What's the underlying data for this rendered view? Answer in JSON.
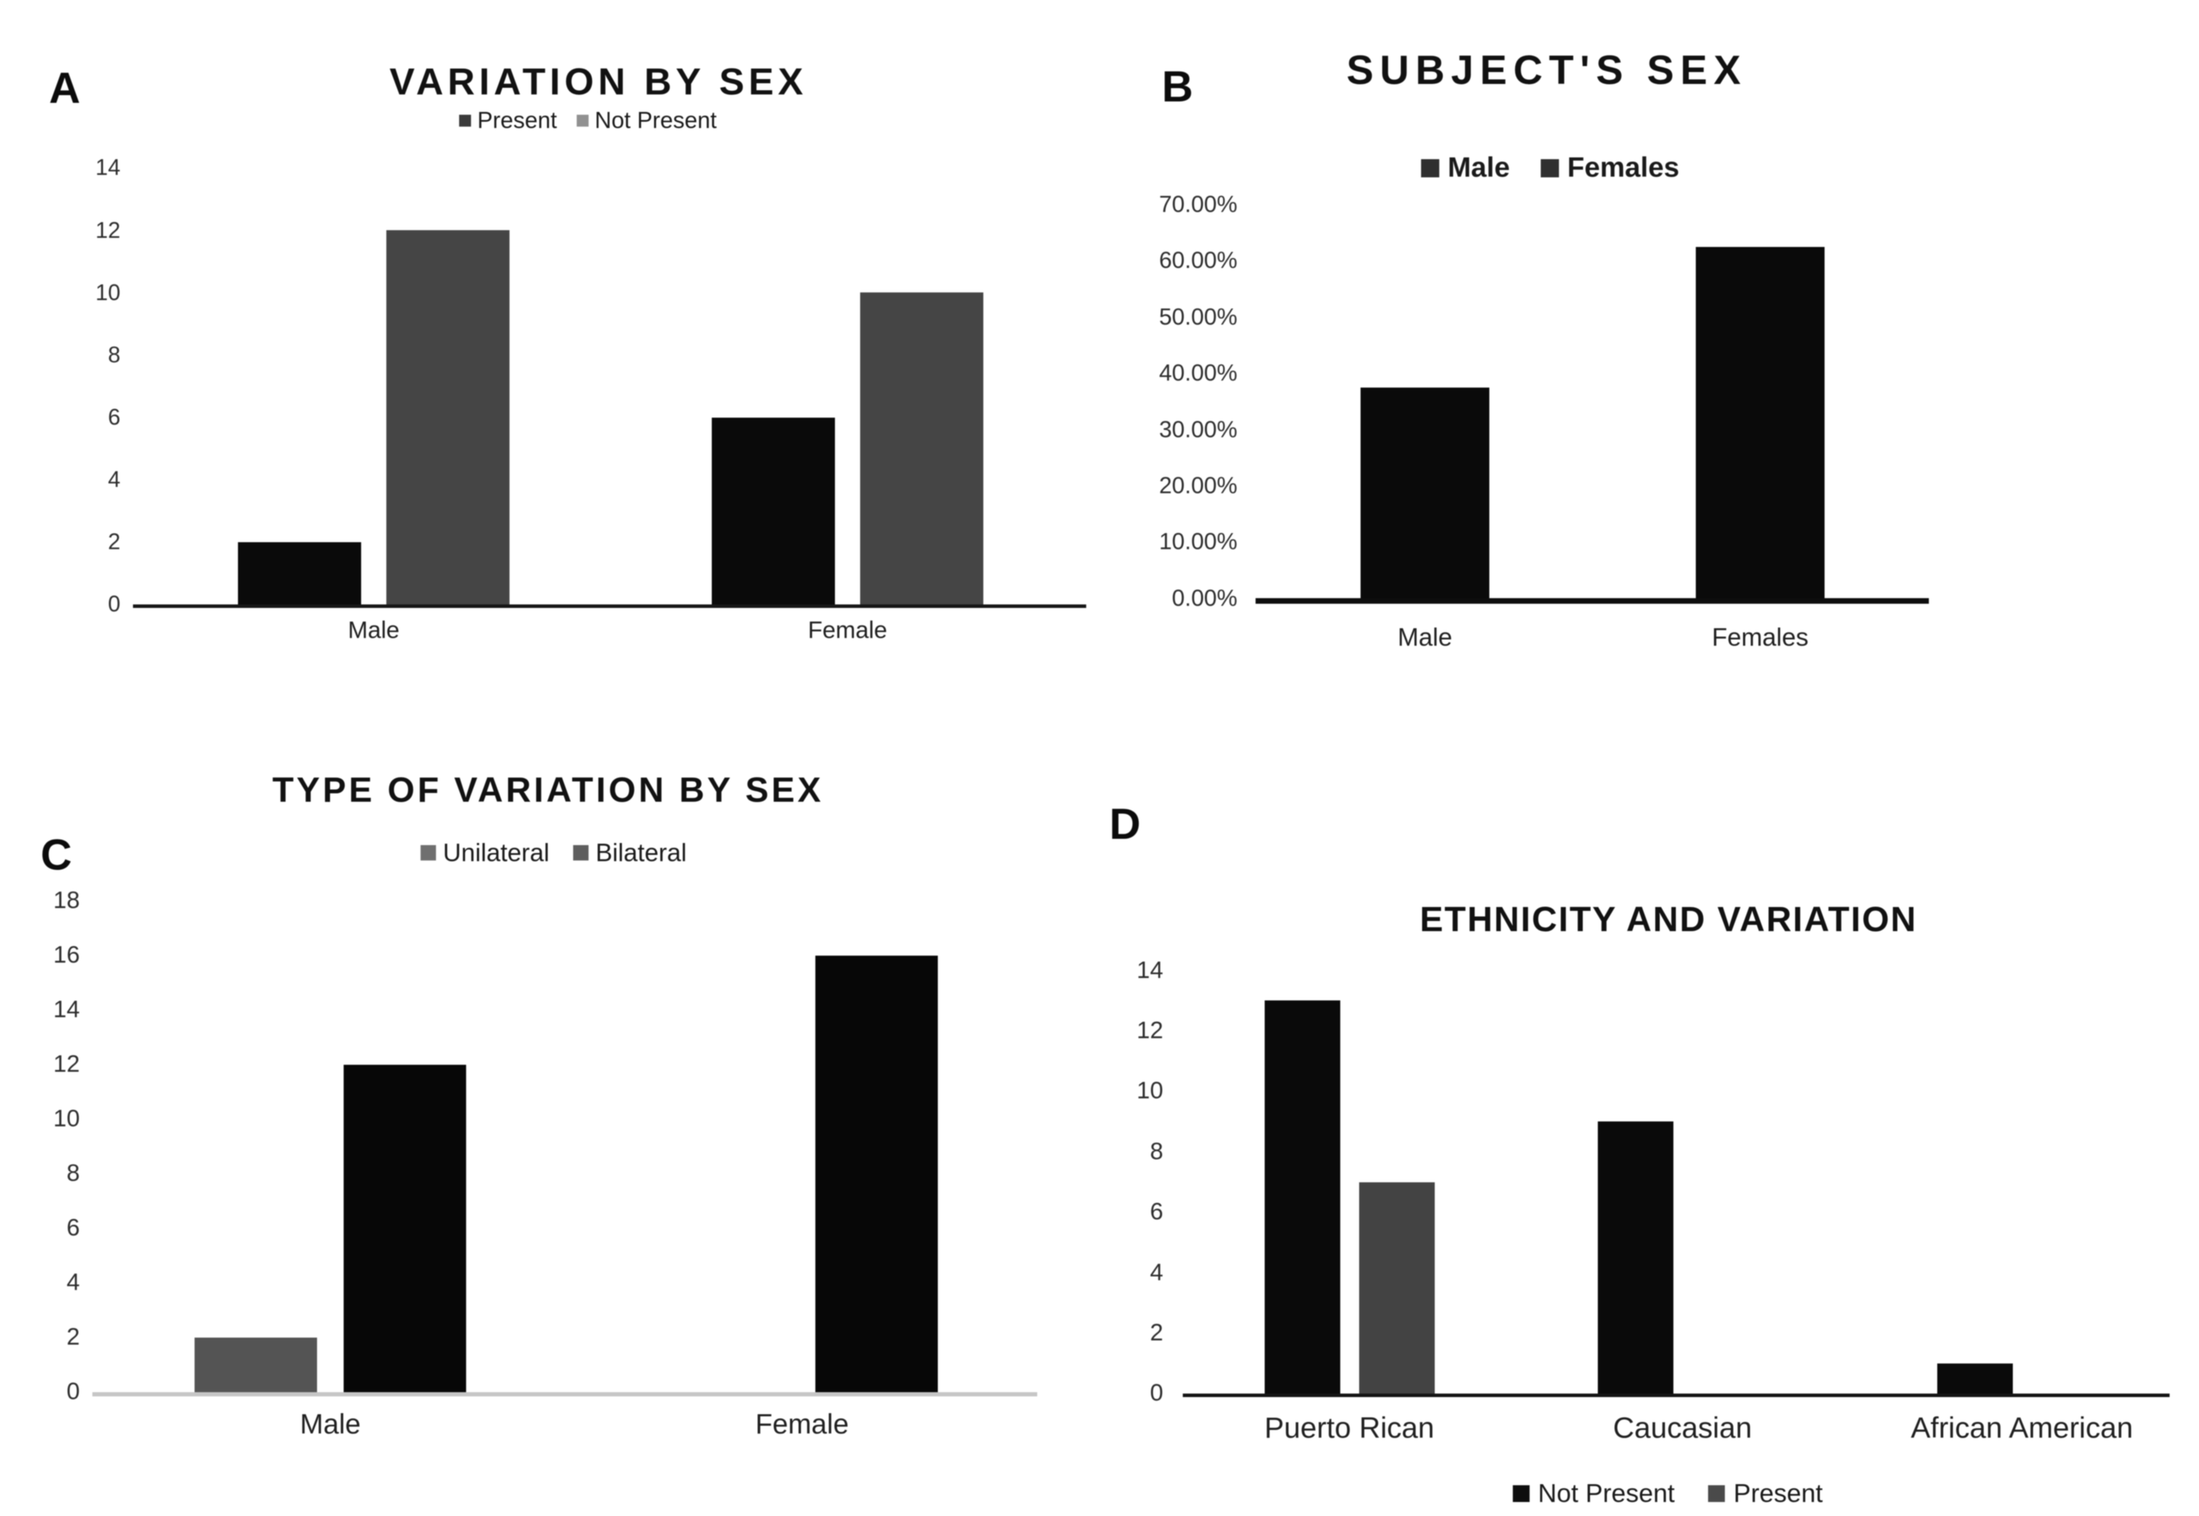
{
  "figure": {
    "background": "#ffffff",
    "panel_letters": [
      "A",
      "B",
      "C",
      "D"
    ]
  },
  "chart_data": [
    {
      "panel": "A",
      "panel_label": "A",
      "type": "bar",
      "title": "VARIATION BY SEX",
      "categories": [
        "Male",
        "Female"
      ],
      "series": [
        {
          "name": "Present",
          "slot": 0,
          "color": "#0a0a0a",
          "legend_marker_color": "#3a3a3a",
          "values": [
            2,
            6
          ]
        },
        {
          "name": "Not Present",
          "slot": 1,
          "color": "#454545",
          "legend_marker_color": "#919191",
          "values": [
            12,
            10
          ]
        }
      ],
      "xlabel": "",
      "ylabel": "",
      "ylim": [
        0,
        14
      ],
      "y_tick_values": [
        0,
        2,
        4,
        6,
        8,
        10,
        12,
        14
      ],
      "y_tick_labels": [
        "0",
        "2",
        "4",
        "6",
        "8",
        "10",
        "12",
        "14"
      ],
      "legend_position": "top",
      "grid": false
    },
    {
      "panel": "B",
      "panel_label": "B",
      "type": "bar",
      "title": "SUBJECT'S SEX",
      "categories": [
        "Male",
        "Females"
      ],
      "series": [
        {
          "name": "Male",
          "slot": 0,
          "color": "#0a0a0a",
          "legend_marker_color": "#2f2f2f",
          "values": [
            37.5,
            null
          ]
        },
        {
          "name": "Females",
          "slot": 0,
          "color": "#0a0a0a",
          "legend_marker_color": "#2f2f2f",
          "values": [
            null,
            62.5
          ]
        }
      ],
      "xlabel": "",
      "ylabel": "",
      "ylim": [
        0,
        70
      ],
      "y_tick_values": [
        0,
        10,
        20,
        30,
        40,
        50,
        60,
        70
      ],
      "y_tick_labels": [
        "0.00%",
        "10.00%",
        "20.00%",
        "30.00%",
        "40.00%",
        "50.00%",
        "60.00%",
        "70.00%"
      ],
      "legend_position": "top",
      "grid": false
    },
    {
      "panel": "C",
      "panel_label": "C",
      "type": "bar",
      "title": "TYPE OF VARIATION BY SEX",
      "categories": [
        "Male",
        "Female"
      ],
      "series": [
        {
          "name": "Unilateral",
          "slot": 0,
          "color": "#545454",
          "legend_marker_color": "#6f6f6f",
          "values": [
            2,
            null
          ]
        },
        {
          "name": "Bilateral",
          "slot": 1,
          "color": "#070707",
          "legend_marker_color": "#5e5e5e",
          "values": [
            12,
            16
          ]
        }
      ],
      "xlabel": "",
      "ylabel": "",
      "ylim": [
        0,
        18
      ],
      "y_tick_values": [
        0,
        2,
        4,
        6,
        8,
        10,
        12,
        14,
        16,
        18
      ],
      "y_tick_labels": [
        "0",
        "2",
        "4",
        "6",
        "8",
        "10",
        "12",
        "14",
        "16",
        "18"
      ],
      "legend_position": "top",
      "grid": false
    },
    {
      "panel": "D",
      "panel_label": "D",
      "type": "bar",
      "title": "ETHNICITY AND VARIATION",
      "categories": [
        "Puerto Rican",
        "Caucasian",
        "African American"
      ],
      "series": [
        {
          "name": "Not Present",
          "slot": 0,
          "color": "#0a0a0a",
          "legend_marker_color": "#0d0d0d",
          "values": [
            13,
            9,
            1
          ]
        },
        {
          "name": "Present",
          "slot": 1,
          "color": "#434343",
          "legend_marker_color": "#4a4a4a",
          "values": [
            7,
            null,
            null
          ]
        }
      ],
      "xlabel": "",
      "ylabel": "",
      "ylim": [
        0,
        14
      ],
      "y_tick_values": [
        0,
        2,
        4,
        6,
        8,
        10,
        12,
        14
      ],
      "y_tick_labels": [
        "0",
        "2",
        "4",
        "6",
        "8",
        "10",
        "12",
        "14"
      ],
      "legend_position": "bottom",
      "grid": false
    }
  ]
}
